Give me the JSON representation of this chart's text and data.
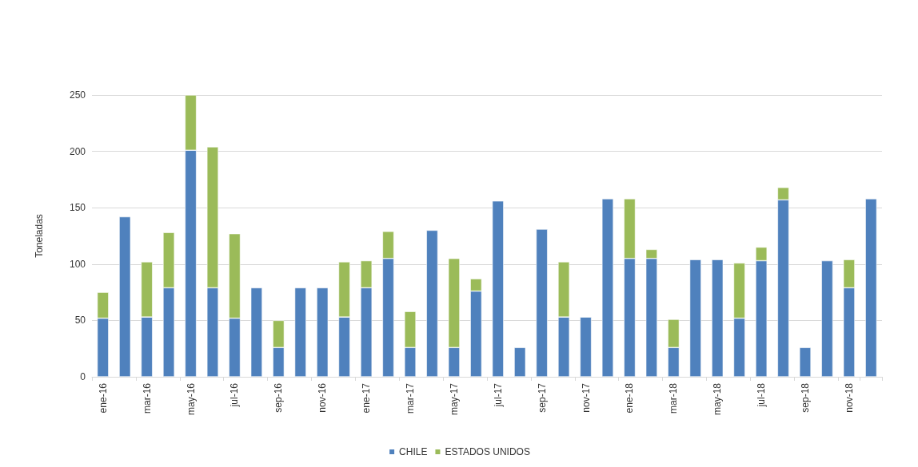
{
  "chart_data": {
    "type": "bar",
    "stacked": true,
    "ylabel": "Toneladas",
    "categories": [
      "ene-16",
      null,
      "mar-16",
      null,
      "may-16",
      null,
      "jul-16",
      null,
      "sep-16",
      null,
      "nov-16",
      null,
      "ene-17",
      null,
      "mar-17",
      null,
      "may-17",
      null,
      "jul-17",
      null,
      "sep-17",
      null,
      "nov-17",
      null,
      "ene-18",
      null,
      "mar-18",
      null,
      "may-18",
      null,
      "jul-18",
      null,
      "sep-18",
      null,
      "nov-18",
      null
    ],
    "series": [
      {
        "name": "CHILE",
        "color": "#4f81bd",
        "values": [
          52,
          142,
          53,
          79,
          201,
          79,
          52,
          79,
          26,
          79,
          79,
          53,
          79,
          105,
          26,
          130,
          26,
          76,
          156,
          26,
          131,
          53,
          53,
          158,
          105,
          105,
          26,
          104,
          104,
          52,
          103,
          157,
          26,
          103,
          79,
          158
        ]
      },
      {
        "name": "ESTADOS UNIDOS",
        "color": "#9bbb59",
        "values": [
          23,
          null,
          49,
          49,
          49,
          125,
          75,
          null,
          24,
          null,
          null,
          49,
          24,
          24,
          32,
          null,
          79,
          11,
          null,
          null,
          null,
          49,
          null,
          null,
          53,
          8,
          25,
          null,
          null,
          49,
          12,
          11,
          null,
          null,
          25,
          null
        ]
      }
    ],
    "ylim": [
      0,
      250
    ],
    "yticks": [
      0,
      50,
      100,
      150,
      200,
      250
    ],
    "grid": "y",
    "legend": "bottom"
  }
}
